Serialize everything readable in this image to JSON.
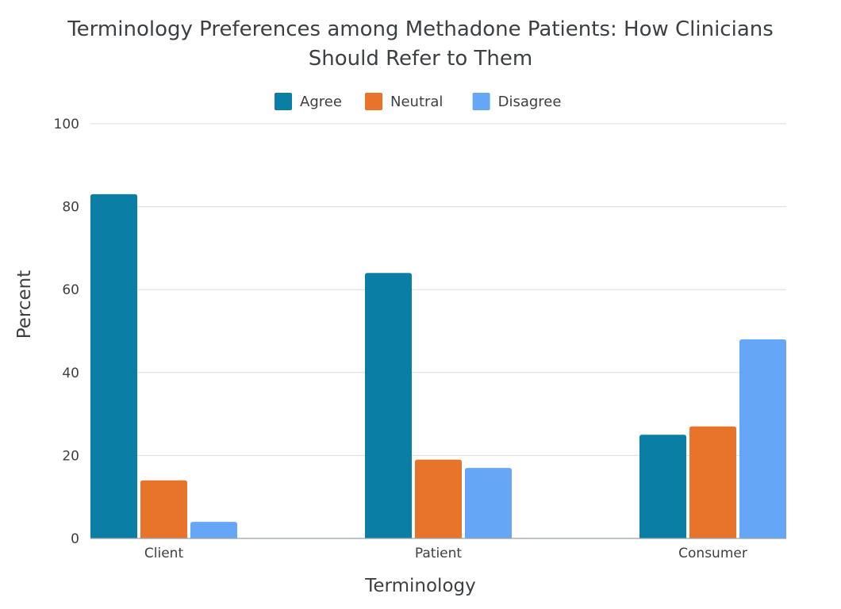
{
  "chart_data": {
    "type": "bar",
    "title_lines": [
      "Terminology Preferences among Methadone Patients: How Clinicians",
      "Should Refer to Them"
    ],
    "xlabel": "Terminology",
    "ylabel": "Percent",
    "categories": [
      "Client",
      "Patient",
      "Consumer"
    ],
    "series": [
      {
        "name": "Agree",
        "color": "#0a7ea4",
        "values": [
          83,
          64,
          25
        ]
      },
      {
        "name": "Neutral",
        "color": "#e8732a",
        "values": [
          14,
          19,
          27
        ]
      },
      {
        "name": "Disagree",
        "color": "#66a6f7",
        "values": [
          4,
          17,
          48
        ]
      }
    ],
    "ylim": [
      0,
      100
    ],
    "yticks": [
      "0",
      "20",
      "40",
      "60",
      "80",
      "100"
    ],
    "grid": true,
    "legend_position": "top-center"
  }
}
